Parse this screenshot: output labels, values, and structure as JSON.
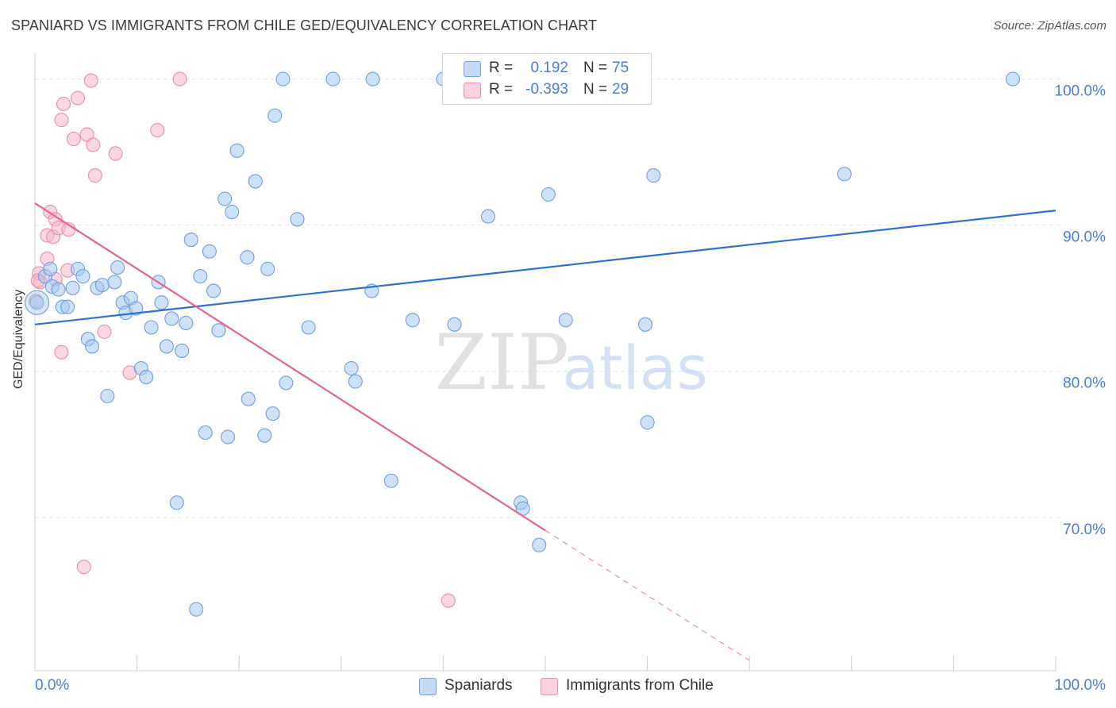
{
  "title": "SPANIARD VS IMMIGRANTS FROM CHILE GED/EQUIVALENCY CORRELATION CHART",
  "source": "Source: ZipAtlas.com",
  "watermark": {
    "zip": "ZIP",
    "atlas": "atlas"
  },
  "colors": {
    "blue_fill": "#a8c8f0",
    "blue_stroke": "#6f9fdc",
    "blue_line": "#2f6fcf",
    "pink_fill": "#f6b8cb",
    "pink_stroke": "#e890aa",
    "pink_line": "#e06690",
    "tick_label": "#4a7fd0",
    "grid": "#e6e6e6"
  },
  "legend": {
    "rows": [
      {
        "r_label": "R =",
        "r_value": "0.192",
        "n_label": "N =",
        "n_value": "75",
        "color": "#a8c8f0"
      },
      {
        "r_label": "R =",
        "r_value": "-0.393",
        "n_label": "N =",
        "n_value": "29",
        "color": "#f6b8cb"
      }
    ]
  },
  "bottom_legend": [
    {
      "label": "Spaniards",
      "color": "#a8c8f0"
    },
    {
      "label": "Immigrants from Chile",
      "color": "#f6b8cb"
    }
  ],
  "chart_data": {
    "type": "scatter",
    "title": "SPANIARD VS IMMIGRANTS FROM CHILE GED/EQUIVALENCY CORRELATION CHART",
    "xlabel": "",
    "ylabel": "GED/Equivalency",
    "xlim": [
      0,
      100
    ],
    "ylim": [
      59.5,
      101.5
    ],
    "x_tick_labels": [
      "0.0%",
      "100.0%"
    ],
    "y_ticks": [
      70,
      80,
      90,
      100
    ],
    "y_tick_labels": [
      "70.0%",
      "80.0%",
      "90.0%",
      "100.0%"
    ],
    "grid": true,
    "legend_position": "top-center",
    "series": [
      {
        "name": "Spaniards",
        "trend": {
          "x": [
            0,
            100
          ],
          "y": [
            83.2,
            91.0
          ]
        },
        "points": [
          [
            1.0,
            86.5
          ],
          [
            1.5,
            87.0
          ],
          [
            1.7,
            85.8
          ],
          [
            2.3,
            85.6
          ],
          [
            2.7,
            84.4
          ],
          [
            3.2,
            84.4
          ],
          [
            3.7,
            85.7
          ],
          [
            4.2,
            87.0
          ],
          [
            4.7,
            86.5
          ],
          [
            5.2,
            82.2
          ],
          [
            5.6,
            81.7
          ],
          [
            6.1,
            85.7
          ],
          [
            6.6,
            85.9
          ],
          [
            7.1,
            78.3
          ],
          [
            7.8,
            86.1
          ],
          [
            8.1,
            87.1
          ],
          [
            8.6,
            84.7
          ],
          [
            8.9,
            84.0
          ],
          [
            9.4,
            85.0
          ],
          [
            9.9,
            84.3
          ],
          [
            10.4,
            80.2
          ],
          [
            10.9,
            79.6
          ],
          [
            11.4,
            83.0
          ],
          [
            12.1,
            86.1
          ],
          [
            12.4,
            84.7
          ],
          [
            12.9,
            81.7
          ],
          [
            13.4,
            83.6
          ],
          [
            13.9,
            71.0
          ],
          [
            14.4,
            81.4
          ],
          [
            14.8,
            83.3
          ],
          [
            15.3,
            89.0
          ],
          [
            15.8,
            63.7
          ],
          [
            16.2,
            86.5
          ],
          [
            16.7,
            75.8
          ],
          [
            17.1,
            88.2
          ],
          [
            17.5,
            85.5
          ],
          [
            18.0,
            82.8
          ],
          [
            18.6,
            91.8
          ],
          [
            18.9,
            75.5
          ],
          [
            19.3,
            90.9
          ],
          [
            19.8,
            95.1
          ],
          [
            20.8,
            87.8
          ],
          [
            20.9,
            78.1
          ],
          [
            21.6,
            93.0
          ],
          [
            22.5,
            75.6
          ],
          [
            22.8,
            87.0
          ],
          [
            23.3,
            77.1
          ],
          [
            23.5,
            97.5
          ],
          [
            24.3,
            100.0
          ],
          [
            24.6,
            79.2
          ],
          [
            25.7,
            90.4
          ],
          [
            26.8,
            83.0
          ],
          [
            29.2,
            100.0
          ],
          [
            31.0,
            80.2
          ],
          [
            31.4,
            79.3
          ],
          [
            33.1,
            100.0
          ],
          [
            33.0,
            85.5
          ],
          [
            34.9,
            72.5
          ],
          [
            37.0,
            83.5
          ],
          [
            40.0,
            100.0
          ],
          [
            41.1,
            83.2
          ],
          [
            44.0,
            99.0
          ],
          [
            44.4,
            90.6
          ],
          [
            47.6,
            71.0
          ],
          [
            47.8,
            70.6
          ],
          [
            49.4,
            68.1
          ],
          [
            50.0,
            100.0
          ],
          [
            50.3,
            92.1
          ],
          [
            52.0,
            83.5
          ],
          [
            59.8,
            83.2
          ],
          [
            60.0,
            76.5
          ],
          [
            60.6,
            93.4
          ],
          [
            79.3,
            93.5
          ],
          [
            95.8,
            100.0
          ],
          [
            0.2,
            84.7
          ]
        ]
      },
      {
        "name": "Immigrants from Chile",
        "trend": {
          "x": [
            0,
            50
          ],
          "y": [
            91.5,
            69.1
          ]
        },
        "trend_dashed": {
          "x": [
            50,
            70
          ],
          "y": [
            69.1,
            60.2
          ]
        },
        "points": [
          [
            0.4,
            86.7
          ],
          [
            0.5,
            86.1
          ],
          [
            1.2,
            87.7
          ],
          [
            1.2,
            89.3
          ],
          [
            1.5,
            90.9
          ],
          [
            1.8,
            89.2
          ],
          [
            2.0,
            90.4
          ],
          [
            2.0,
            86.3
          ],
          [
            2.3,
            89.8
          ],
          [
            2.6,
            97.2
          ],
          [
            2.6,
            81.3
          ],
          [
            2.8,
            98.3
          ],
          [
            3.2,
            86.9
          ],
          [
            3.3,
            89.7
          ],
          [
            3.8,
            95.9
          ],
          [
            4.2,
            98.7
          ],
          [
            4.8,
            66.6
          ],
          [
            5.1,
            96.2
          ],
          [
            5.5,
            99.9
          ],
          [
            5.7,
            95.5
          ],
          [
            5.9,
            93.4
          ],
          [
            6.8,
            82.7
          ],
          [
            7.9,
            94.9
          ],
          [
            9.3,
            79.9
          ],
          [
            12.0,
            96.5
          ],
          [
            14.2,
            100.0
          ],
          [
            40.5,
            64.3
          ],
          [
            0.1,
            84.8
          ],
          [
            0.3,
            86.2
          ]
        ]
      }
    ]
  }
}
